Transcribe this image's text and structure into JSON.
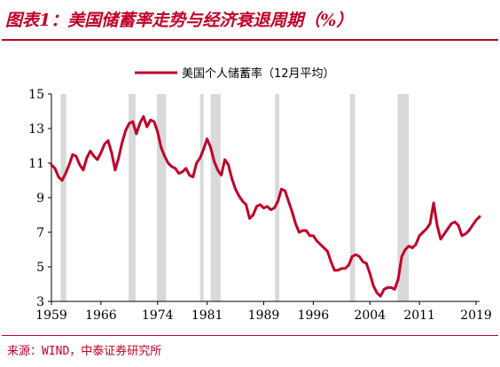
{
  "header": {
    "title": "图表1：美国储蓄率走势与经济衰退周期（%）"
  },
  "footer": {
    "source": "来源：WIND，中泰证券研究所"
  },
  "colors": {
    "accent": "#c00028",
    "recession_band": "#d9d9d9",
    "axis": "#000000"
  },
  "chart_data": {
    "type": "line",
    "title": "",
    "xlabel": "",
    "ylabel": "",
    "legend": {
      "position": "top-center",
      "entries": [
        "美国个人储蓄率（12月平均）"
      ]
    },
    "xlim": [
      1959,
      2019.5
    ],
    "ylim": [
      3,
      15
    ],
    "xticks": [
      1959,
      1966,
      1974,
      1981,
      1989,
      1996,
      2004,
      2011,
      2019
    ],
    "yticks": [
      3,
      5,
      7,
      9,
      11,
      13,
      15
    ],
    "grid": false,
    "recessions": [
      [
        1960.3,
        1961.1
      ],
      [
        1969.9,
        1970.9
      ],
      [
        1973.9,
        1975.2
      ],
      [
        1980.0,
        1980.5
      ],
      [
        1981.5,
        1982.9
      ],
      [
        1990.6,
        1991.2
      ],
      [
        2001.2,
        2001.9
      ],
      [
        2007.9,
        2009.5
      ]
    ],
    "series": [
      {
        "name": "美国个人储蓄率（12月平均）",
        "color": "#c00028",
        "x": [
          1959,
          1959.5,
          1960,
          1960.5,
          1961,
          1961.5,
          1962,
          1962.5,
          1963,
          1963.5,
          1964,
          1964.5,
          1965,
          1965.5,
          1966,
          1966.5,
          1967,
          1967.5,
          1968,
          1968.5,
          1969,
          1969.5,
          1970,
          1970.5,
          1971,
          1971.5,
          1972,
          1972.5,
          1973,
          1973.5,
          1974,
          1974.5,
          1975,
          1975.5,
          1976,
          1976.5,
          1977,
          1977.5,
          1978,
          1978.5,
          1979,
          1979.5,
          1980,
          1980.5,
          1981,
          1981.5,
          1982,
          1982.5,
          1983,
          1983.5,
          1984,
          1984.5,
          1985,
          1985.5,
          1986,
          1986.5,
          1987,
          1987.5,
          1988,
          1988.5,
          1989,
          1989.5,
          1990,
          1990.5,
          1991,
          1991.5,
          1992,
          1992.5,
          1993,
          1993.5,
          1994,
          1994.5,
          1995,
          1995.5,
          1996,
          1996.5,
          1997,
          1997.5,
          1998,
          1998.5,
          1999,
          1999.5,
          2000,
          2000.5,
          2001,
          2001.5,
          2002,
          2002.5,
          2003,
          2003.5,
          2004,
          2004.5,
          2005,
          2005.5,
          2006,
          2006.5,
          2007,
          2007.5,
          2008,
          2008.5,
          2009,
          2009.5,
          2010,
          2010.5,
          2011,
          2011.5,
          2012,
          2012.5,
          2013,
          2013.5,
          2014,
          2014.5,
          2015,
          2015.5,
          2016,
          2016.5,
          2017,
          2017.5,
          2018,
          2018.5,
          2019,
          2019.5
        ],
        "values": [
          10.9,
          10.7,
          10.2,
          10.0,
          10.4,
          10.9,
          11.5,
          11.4,
          10.9,
          10.6,
          11.3,
          11.7,
          11.4,
          11.2,
          11.6,
          12.1,
          12.3,
          11.6,
          10.6,
          11.3,
          12.2,
          12.9,
          13.3,
          13.4,
          12.7,
          13.3,
          13.7,
          13.1,
          13.5,
          13.4,
          12.8,
          11.9,
          11.4,
          11.0,
          10.8,
          10.7,
          10.4,
          10.5,
          10.7,
          10.3,
          10.2,
          11.0,
          11.3,
          11.8,
          12.4,
          11.9,
          11.1,
          10.6,
          10.3,
          11.2,
          10.9,
          10.1,
          9.5,
          9.1,
          8.8,
          8.6,
          7.8,
          8.0,
          8.5,
          8.6,
          8.4,
          8.5,
          8.3,
          8.4,
          8.8,
          9.5,
          9.4,
          8.8,
          8.2,
          7.5,
          7.0,
          7.1,
          7.1,
          6.8,
          6.8,
          6.5,
          6.3,
          6.1,
          5.9,
          5.3,
          4.8,
          4.8,
          4.9,
          4.9,
          5.1,
          5.6,
          5.7,
          5.6,
          5.3,
          5.2,
          4.6,
          3.9,
          3.5,
          3.3,
          3.7,
          3.8,
          3.8,
          3.7,
          4.3,
          5.6,
          6.0,
          6.2,
          6.1,
          6.3,
          6.8,
          7.0,
          7.2,
          7.5,
          8.7,
          7.4,
          6.6,
          6.9,
          7.2,
          7.5,
          7.6,
          7.4,
          6.8,
          6.9,
          7.1,
          7.4,
          7.7,
          7.9
        ]
      }
    ]
  }
}
